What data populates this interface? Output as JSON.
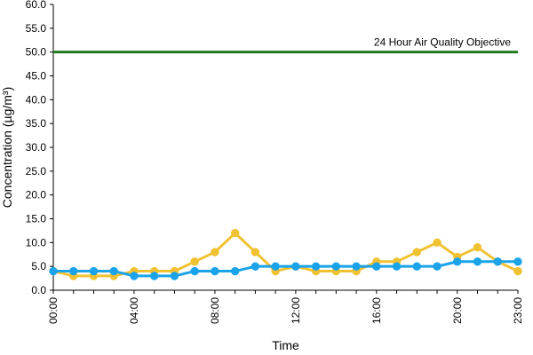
{
  "chart_data": {
    "type": "line",
    "xlabel": "Time",
    "ylabel": "Concentration (µg/m³)",
    "ylim": [
      0,
      60
    ],
    "y_ticks": [
      "0.0",
      "5.0",
      "10.0",
      "15.0",
      "20.0",
      "25.0",
      "30.0",
      "35.0",
      "40.0",
      "45.0",
      "50.0",
      "55.0",
      "60.0"
    ],
    "x_tick_labels": [
      "00:00",
      "04:00",
      "08:00",
      "12:00",
      "16:00",
      "20:00",
      "23:00"
    ],
    "x_tick_hours": [
      0,
      4,
      8,
      12,
      16,
      20,
      23
    ],
    "hours": [
      0,
      1,
      2,
      3,
      4,
      5,
      6,
      7,
      8,
      9,
      10,
      11,
      12,
      13,
      14,
      15,
      16,
      17,
      18,
      19,
      20,
      21,
      22,
      23
    ],
    "grid": false,
    "series": [
      {
        "color": "#f0c232",
        "values": [
          4,
          3,
          3,
          3,
          4,
          4,
          4,
          6,
          8,
          12,
          8,
          4,
          5,
          4,
          4,
          4,
          6,
          6,
          8,
          10,
          7,
          9,
          6,
          4
        ]
      },
      {
        "color": "#1aa3e8",
        "values": [
          4,
          4,
          4,
          4,
          3,
          3,
          3,
          4,
          4,
          4,
          5,
          5,
          5,
          5,
          5,
          5,
          5,
          5,
          5,
          5,
          6,
          6,
          6,
          6
        ]
      }
    ],
    "reference_line": {
      "value": 50,
      "label": "24 Hour Air Quality Objective",
      "color": "#1e7a1e"
    }
  }
}
